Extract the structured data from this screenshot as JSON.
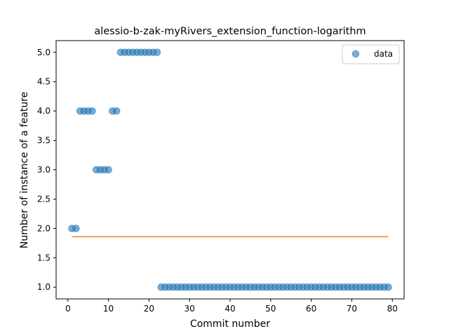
{
  "chart_data": {
    "type": "scatter",
    "title": "alessio-b-zak-myRivers_extension_function-logarithm",
    "xlabel": "Commit number",
    "ylabel": "Number of instance of a feature",
    "xlim": [
      -2.9,
      82.9
    ],
    "ylim": [
      0.8,
      5.2
    ],
    "xticks": [
      0,
      10,
      20,
      30,
      40,
      50,
      60,
      70,
      80
    ],
    "yticks": [
      1.0,
      1.5,
      2.0,
      2.5,
      3.0,
      3.5,
      4.0,
      4.5,
      5.0
    ],
    "xtick_labels": [
      "0",
      "10",
      "20",
      "30",
      "40",
      "50",
      "60",
      "70",
      "80"
    ],
    "ytick_labels": [
      "1.0",
      "1.5",
      "2.0",
      "2.5",
      "3.0",
      "3.5",
      "4.0",
      "4.5",
      "5.0"
    ],
    "grid": false,
    "legend": {
      "placement": "top-right",
      "entries": [
        "data"
      ]
    },
    "series": [
      {
        "name": "data",
        "kind": "scatter",
        "color": "#1f77b4",
        "x": [
          1,
          2,
          3,
          4,
          5,
          6,
          7,
          8,
          9,
          10,
          11,
          12,
          13,
          14,
          15,
          16,
          17,
          18,
          19,
          20,
          21,
          22,
          23,
          24,
          25,
          26,
          27,
          28,
          29,
          30,
          31,
          32,
          33,
          34,
          35,
          36,
          37,
          38,
          39,
          40,
          41,
          42,
          43,
          44,
          45,
          46,
          47,
          48,
          49,
          50,
          51,
          52,
          53,
          54,
          55,
          56,
          57,
          58,
          59,
          60,
          61,
          62,
          63,
          64,
          65,
          66,
          67,
          68,
          69,
          70,
          71,
          72,
          73,
          74,
          75,
          76,
          77,
          78,
          79
        ],
        "y": [
          2,
          2,
          4,
          4,
          4,
          4,
          3,
          3,
          3,
          3,
          4,
          4,
          5,
          5,
          5,
          5,
          5,
          5,
          5,
          5,
          5,
          5,
          1,
          1,
          1,
          1,
          1,
          1,
          1,
          1,
          1,
          1,
          1,
          1,
          1,
          1,
          1,
          1,
          1,
          1,
          1,
          1,
          1,
          1,
          1,
          1,
          1,
          1,
          1,
          1,
          1,
          1,
          1,
          1,
          1,
          1,
          1,
          1,
          1,
          1,
          1,
          1,
          1,
          1,
          1,
          1,
          1,
          1,
          1,
          1,
          1,
          1,
          1,
          1,
          1,
          1,
          1,
          1,
          1
        ]
      },
      {
        "kind": "line",
        "color": "#ff7f0e",
        "x": [
          1,
          79
        ],
        "y": [
          1.86,
          1.86
        ]
      }
    ]
  }
}
